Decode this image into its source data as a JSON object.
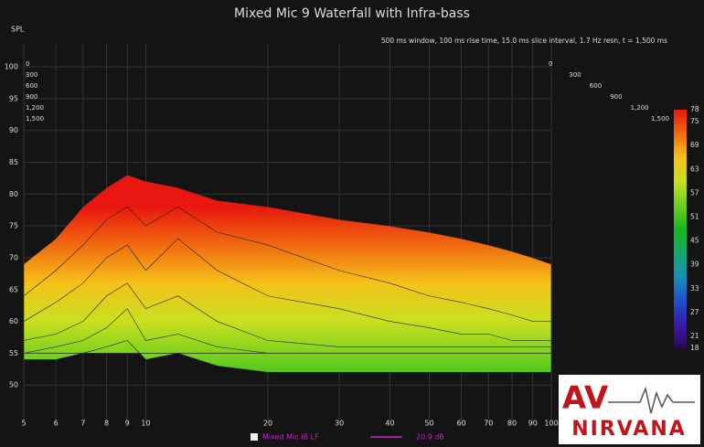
{
  "chart_data": {
    "type": "waterfall",
    "title": "Mixed Mic 9 Waterfall with Infra-bass",
    "y_label": "SPL",
    "annotation": "500 ms window, 100 ms rise time, 15.0 ms slice interval, 1.7 Hz resn, t = 1,500 ms",
    "xscale": "log",
    "xlim": [
      5,
      100
    ],
    "xticks": [
      5,
      6,
      7,
      8,
      9,
      10,
      20,
      30,
      40,
      50,
      60,
      70,
      80,
      90,
      100
    ],
    "ylim": [
      44,
      103.6
    ],
    "yticks": [
      100,
      95,
      90,
      85,
      80,
      75,
      70,
      65,
      60,
      55,
      50
    ],
    "grid": true,
    "zticks": [
      {
        "value": 0,
        "label": "0"
      },
      {
        "value": 300,
        "label": "300"
      },
      {
        "value": 600,
        "label": "600"
      },
      {
        "value": 900,
        "label": "900"
      },
      {
        "value": 1200,
        "label": "1,200"
      },
      {
        "value": 1500,
        "label": "1,500"
      }
    ],
    "x": [
      5,
      6,
      7,
      8,
      9,
      10,
      12,
      15,
      20,
      30,
      40,
      50,
      60,
      70,
      80,
      90,
      100
    ],
    "slices": [
      {
        "time": 0,
        "values": [
          69,
          73,
          78,
          81,
          83,
          82,
          81,
          79,
          78,
          76,
          75,
          74,
          73,
          72,
          71,
          70,
          69
        ]
      },
      {
        "time": 300,
        "values": [
          64,
          68,
          72,
          76,
          78,
          75,
          78,
          74,
          72,
          68,
          66,
          64,
          63,
          62,
          61,
          60,
          60
        ]
      },
      {
        "time": 600,
        "values": [
          60,
          63,
          66,
          70,
          72,
          68,
          73,
          68,
          64,
          62,
          60,
          59,
          58,
          58,
          57,
          57,
          57
        ]
      },
      {
        "time": 900,
        "values": [
          57,
          58,
          60,
          64,
          66,
          62,
          64,
          60,
          57,
          56,
          56,
          56,
          56,
          56,
          56,
          56,
          56
        ]
      },
      {
        "time": 1200,
        "values": [
          55,
          56,
          57,
          59,
          62,
          57,
          58,
          56,
          55,
          55,
          55,
          55,
          55,
          55,
          55,
          55,
          55
        ]
      },
      {
        "time": 1500,
        "values": [
          54,
          54,
          55,
          56,
          57,
          54,
          55,
          53,
          52,
          52,
          52,
          52,
          52,
          52,
          52,
          52,
          52
        ]
      }
    ],
    "colorscale": {
      "range": [
        18,
        78
      ],
      "ticks": [
        78,
        75,
        69,
        63,
        57,
        51,
        45,
        39,
        33,
        27,
        21,
        18
      ],
      "stops": [
        {
          "value": 78,
          "color": "#e8170f"
        },
        {
          "value": 72,
          "color": "#f06a10"
        },
        {
          "value": 66,
          "color": "#f5c21a"
        },
        {
          "value": 60,
          "color": "#c8e020"
        },
        {
          "value": 54,
          "color": "#6fcf1e"
        },
        {
          "value": 48,
          "color": "#19b61d"
        },
        {
          "value": 42,
          "color": "#18a86a"
        },
        {
          "value": 36,
          "color": "#1890b8"
        },
        {
          "value": 30,
          "color": "#1e4fd0"
        },
        {
          "value": 24,
          "color": "#3a1aa8"
        },
        {
          "value": 18,
          "color": "#2a0a50"
        }
      ]
    },
    "legend": {
      "name": "Mixed Mic IB LF",
      "color": "#d020d0",
      "value": "20.9 dB"
    }
  },
  "logo": {
    "top": "AV",
    "bottom": "NIRVANA"
  }
}
